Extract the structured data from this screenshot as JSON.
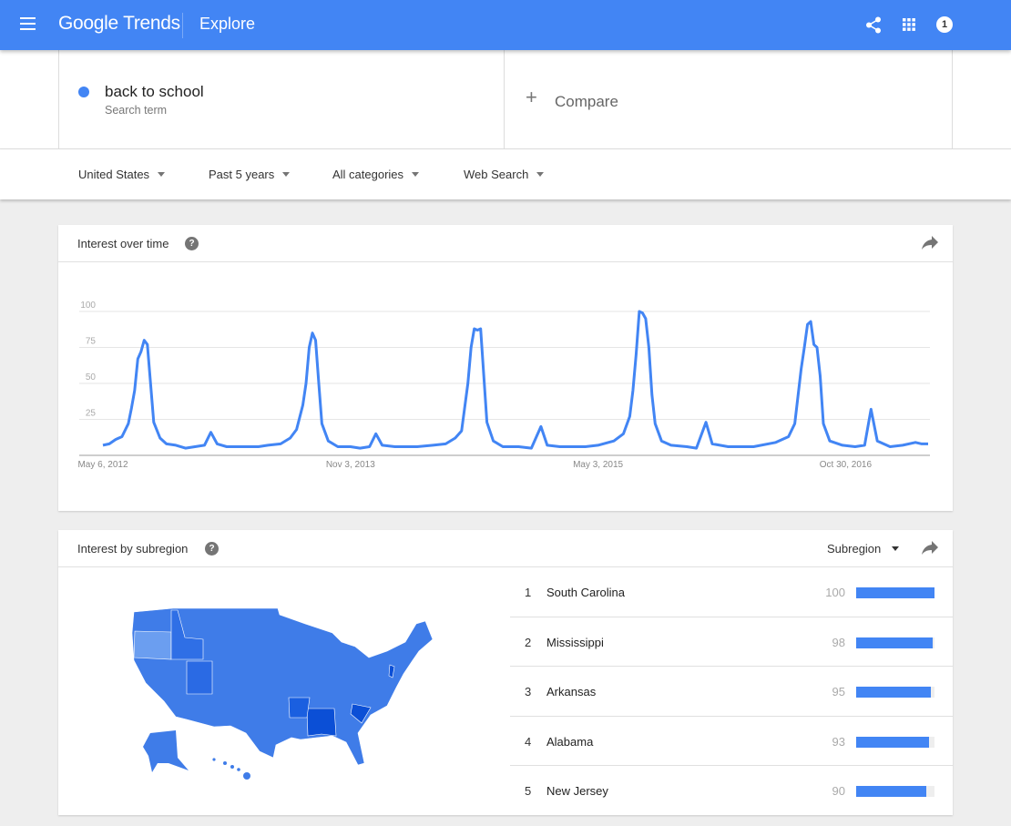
{
  "header": {
    "logo": "Google Trends",
    "section": "Explore",
    "notification_count": "1",
    "icons": [
      "menu-icon",
      "share-icon",
      "apps-grid-icon"
    ]
  },
  "term": {
    "label": "back to school",
    "sublabel": "Search term",
    "color": "#4285f4"
  },
  "compare": {
    "label": "Compare"
  },
  "filters": [
    {
      "label": "United States"
    },
    {
      "label": "Past 5 years"
    },
    {
      "label": "All categories"
    },
    {
      "label": "Web Search"
    }
  ],
  "interest_over_time": {
    "title": "Interest over time"
  },
  "interest_by_subregion": {
    "title": "Interest by subregion",
    "selector": "Subregion",
    "rows": [
      {
        "rank": "1",
        "name": "South Carolina",
        "value": "100"
      },
      {
        "rank": "2",
        "name": "Mississippi",
        "value": "98"
      },
      {
        "rank": "3",
        "name": "Arkansas",
        "value": "95"
      },
      {
        "rank": "4",
        "name": "Alabama",
        "value": "93"
      },
      {
        "rank": "5",
        "name": "New Jersey",
        "value": "90"
      }
    ]
  },
  "chart_data": {
    "type": "line",
    "title": "",
    "xlabel": "",
    "ylabel": "",
    "ylim": [
      0,
      100
    ],
    "grid": true,
    "yticks": [
      "25",
      "50",
      "75",
      "100"
    ],
    "xticks": [
      "May 6, 2012",
      "Nov 3, 2013",
      "May 3, 2015",
      "Oct 30, 2016"
    ],
    "xtick_dates": [
      "2012-05-06",
      "2013-11-03",
      "2015-05-03",
      "2016-10-30"
    ],
    "xrange": [
      "2012-05-06",
      "2017-04-30"
    ],
    "color": "#4285f4",
    "points": [
      [
        "2012-05-06",
        7
      ],
      [
        "2012-05-20",
        8
      ],
      [
        "2012-06-03",
        11
      ],
      [
        "2012-06-17",
        13
      ],
      [
        "2012-07-01",
        22
      ],
      [
        "2012-07-08",
        33
      ],
      [
        "2012-07-15",
        45
      ],
      [
        "2012-07-22",
        67
      ],
      [
        "2012-07-29",
        72
      ],
      [
        "2012-08-05",
        80
      ],
      [
        "2012-08-12",
        77
      ],
      [
        "2012-08-19",
        50
      ],
      [
        "2012-08-26",
        23
      ],
      [
        "2012-09-09",
        12
      ],
      [
        "2012-09-23",
        8
      ],
      [
        "2012-10-14",
        7
      ],
      [
        "2012-11-04",
        5
      ],
      [
        "2012-11-25",
        6
      ],
      [
        "2012-12-16",
        7
      ],
      [
        "2012-12-30",
        16
      ],
      [
        "2013-01-13",
        8
      ],
      [
        "2013-02-03",
        6
      ],
      [
        "2013-03-10",
        6
      ],
      [
        "2013-04-14",
        6
      ],
      [
        "2013-05-05",
        7
      ],
      [
        "2013-06-02",
        8
      ],
      [
        "2013-06-23",
        12
      ],
      [
        "2013-07-07",
        18
      ],
      [
        "2013-07-21",
        35
      ],
      [
        "2013-07-28",
        50
      ],
      [
        "2013-08-04",
        75
      ],
      [
        "2013-08-11",
        85
      ],
      [
        "2013-08-18",
        80
      ],
      [
        "2013-08-25",
        50
      ],
      [
        "2013-09-01",
        22
      ],
      [
        "2013-09-15",
        10
      ],
      [
        "2013-10-06",
        6
      ],
      [
        "2013-11-03",
        6
      ],
      [
        "2013-11-24",
        5
      ],
      [
        "2013-12-15",
        6
      ],
      [
        "2013-12-29",
        15
      ],
      [
        "2014-01-12",
        7
      ],
      [
        "2014-02-09",
        6
      ],
      [
        "2014-03-30",
        6
      ],
      [
        "2014-05-04",
        7
      ],
      [
        "2014-06-01",
        8
      ],
      [
        "2014-06-22",
        12
      ],
      [
        "2014-07-06",
        17
      ],
      [
        "2014-07-20",
        50
      ],
      [
        "2014-07-27",
        75
      ],
      [
        "2014-08-03",
        88
      ],
      [
        "2014-08-10",
        87
      ],
      [
        "2014-08-17",
        88
      ],
      [
        "2014-08-24",
        55
      ],
      [
        "2014-08-31",
        23
      ],
      [
        "2014-09-14",
        10
      ],
      [
        "2014-10-05",
        6
      ],
      [
        "2014-11-09",
        6
      ],
      [
        "2014-12-07",
        5
      ],
      [
        "2014-12-28",
        20
      ],
      [
        "2015-01-11",
        7
      ],
      [
        "2015-02-08",
        6
      ],
      [
        "2015-04-05",
        6
      ],
      [
        "2015-05-03",
        7
      ],
      [
        "2015-06-07",
        10
      ],
      [
        "2015-06-28",
        15
      ],
      [
        "2015-07-12",
        27
      ],
      [
        "2015-07-19",
        45
      ],
      [
        "2015-07-26",
        70
      ],
      [
        "2015-08-02",
        100
      ],
      [
        "2015-08-09",
        99
      ],
      [
        "2015-08-16",
        95
      ],
      [
        "2015-08-23",
        75
      ],
      [
        "2015-08-30",
        42
      ],
      [
        "2015-09-06",
        22
      ],
      [
        "2015-09-20",
        10
      ],
      [
        "2015-10-11",
        7
      ],
      [
        "2015-11-15",
        6
      ],
      [
        "2015-12-06",
        5
      ],
      [
        "2015-12-27",
        23
      ],
      [
        "2016-01-10",
        8
      ],
      [
        "2016-02-14",
        6
      ],
      [
        "2016-04-10",
        6
      ],
      [
        "2016-05-29",
        9
      ],
      [
        "2016-06-26",
        13
      ],
      [
        "2016-07-10",
        22
      ],
      [
        "2016-07-24",
        60
      ],
      [
        "2016-07-31",
        75
      ],
      [
        "2016-08-07",
        91
      ],
      [
        "2016-08-14",
        93
      ],
      [
        "2016-08-21",
        77
      ],
      [
        "2016-08-28",
        75
      ],
      [
        "2016-09-04",
        55
      ],
      [
        "2016-09-11",
        22
      ],
      [
        "2016-09-25",
        10
      ],
      [
        "2016-10-23",
        7
      ],
      [
        "2016-11-20",
        6
      ],
      [
        "2016-12-11",
        7
      ],
      [
        "2016-12-25",
        32
      ],
      [
        "2017-01-08",
        10
      ],
      [
        "2017-02-05",
        6
      ],
      [
        "2017-03-05",
        7
      ],
      [
        "2017-04-02",
        9
      ],
      [
        "2017-04-16",
        8
      ],
      [
        "2017-04-30",
        8
      ]
    ]
  },
  "map": {
    "colors": {
      "base": "#3f7ce8",
      "light": "#6b9ef0",
      "dark": "#1a5fe0",
      "darkest": "#0b4fd6"
    }
  }
}
